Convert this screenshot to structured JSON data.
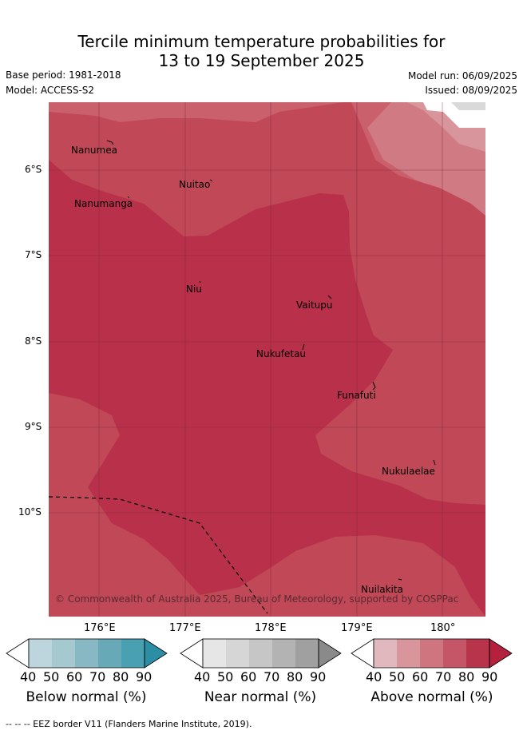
{
  "header": {
    "title_line1": "Tercile minimum temperature probabilities for",
    "title_line2": "13 to 19 September 2025",
    "base_period": "Base period: 1981-2018",
    "model": "Model: ACCESS-S2",
    "model_run": "Model run: 06/09/2025",
    "issued": "Issued: 08/09/2025"
  },
  "map": {
    "lat_labels": [
      "6°S",
      "7°S",
      "8°S",
      "9°S",
      "10°S"
    ],
    "lon_labels": [
      "176°E",
      "177°E",
      "178°E",
      "179°E",
      "180°"
    ],
    "places": [
      "Nanumea",
      "Nuitao",
      "Nanumanga",
      "Niu",
      "Vaitupu",
      "Nukufetau",
      "Funafuti",
      "Nukulaelae",
      "Nuilakita"
    ],
    "copyright": "© Commonwealth of Australia 2025, Bureau of Meteorology, supported by COSPPac",
    "colors": {
      "above_60_70": "#c9606c",
      "above_70_80": "#c04857",
      "above_80_90": "#b8304a",
      "light_50_60": "#d88c95",
      "grey": "#d9d9d9"
    }
  },
  "legends": {
    "below": {
      "caption": "Below normal (%)",
      "ticks": [
        "40",
        "50",
        "60",
        "70",
        "80",
        "90"
      ],
      "colors": [
        "#ffffff",
        "#bdd5dc",
        "#a6c9d0",
        "#88b8c4",
        "#68a9b8",
        "#48a0b2",
        "#2b8ea5"
      ]
    },
    "near": {
      "caption": "Near normal (%)",
      "ticks": [
        "40",
        "50",
        "60",
        "70",
        "80",
        "90"
      ],
      "colors": [
        "#ffffff",
        "#e6e6e6",
        "#d6d6d6",
        "#c6c6c6",
        "#b3b3b3",
        "#a0a0a0",
        "#8a8a8a"
      ]
    },
    "above": {
      "caption": "Above normal (%)",
      "ticks": [
        "40",
        "50",
        "60",
        "70",
        "80",
        "90"
      ],
      "colors": [
        "#ffffff",
        "#e0b8bd",
        "#d9959c",
        "#cf7580",
        "#c45668",
        "#b8344a",
        "#b3213d"
      ]
    }
  },
  "footer": {
    "eez_text": "-- -- -- EEZ border V11 (Flanders Marine Institute, 2019)."
  }
}
